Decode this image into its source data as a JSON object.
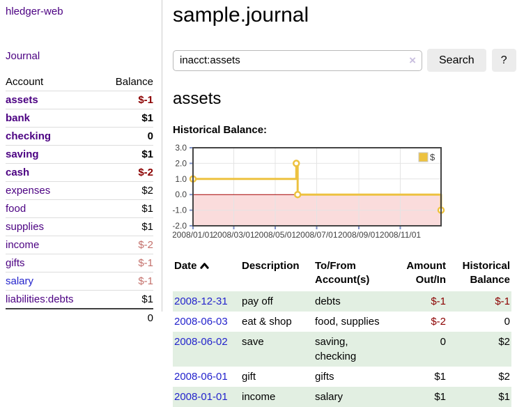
{
  "app": {
    "title": "hledger-web"
  },
  "sidebar": {
    "journal_link": "Journal",
    "accounts": {
      "col_account": "Account",
      "col_balance": "Balance",
      "rows": [
        {
          "name": "assets",
          "balance": "$-1",
          "level": 1,
          "bold": true,
          "balance_style": "neg-strong",
          "link_style": "purple"
        },
        {
          "name": "bank",
          "balance": "$1",
          "level": 2,
          "bold": true,
          "balance_style": "pos",
          "link_style": "purple"
        },
        {
          "name": "checking",
          "balance": "0",
          "level": 3,
          "bold": true,
          "balance_style": "pos",
          "link_style": "purple"
        },
        {
          "name": "saving",
          "balance": "$1",
          "level": 3,
          "bold": true,
          "balance_style": "pos",
          "link_style": "purple"
        },
        {
          "name": "cash",
          "balance": "$-2",
          "level": 2,
          "bold": true,
          "balance_style": "neg-strong",
          "link_style": "purple"
        },
        {
          "name": "expenses",
          "balance": "$2",
          "level": 1,
          "bold": false,
          "balance_style": "pos",
          "link_style": "purple"
        },
        {
          "name": "food",
          "balance": "$1",
          "level": 2,
          "bold": false,
          "balance_style": "pos",
          "link_style": "purple"
        },
        {
          "name": "supplies",
          "balance": "$1",
          "level": 2,
          "bold": false,
          "balance_style": "pos",
          "link_style": "purple"
        },
        {
          "name": "income",
          "balance": "$-2",
          "level": 1,
          "bold": false,
          "balance_style": "neg-muted",
          "link_style": "purple"
        },
        {
          "name": "gifts",
          "balance": "$-1",
          "level": 2,
          "bold": false,
          "balance_style": "neg-muted",
          "link_style": "purple"
        },
        {
          "name": "salary",
          "balance": "$-1",
          "level": 2,
          "bold": false,
          "balance_style": "neg-muted",
          "link_style": "blue"
        },
        {
          "name": "liabilities:debts",
          "balance": "$1",
          "level": 1,
          "bold": false,
          "balance_style": "pos",
          "link_style": "purple"
        }
      ],
      "total": "0"
    }
  },
  "header": {
    "title": "sample.journal"
  },
  "search": {
    "value": "inacct:assets",
    "clear_icon": "×",
    "button_label": "Search",
    "help_label": "?"
  },
  "register": {
    "heading": "assets",
    "chart_label": "Historical Balance:",
    "table": {
      "headers": {
        "date": "Date",
        "description": "Description",
        "tofrom1": "To/From",
        "tofrom2": "Account(s)",
        "amount1": "Amount",
        "amount2": "Out/In",
        "balance1": "Historical",
        "balance2": "Balance"
      },
      "rows": [
        {
          "date": "2008-12-31",
          "description": "pay off",
          "accounts": "debts",
          "amount": "$-1",
          "balance": "$-1"
        },
        {
          "date": "2008-06-03",
          "description": "eat & shop",
          "accounts": "food, supplies",
          "amount": "$-2",
          "balance": "0"
        },
        {
          "date": "2008-06-02",
          "description": "save",
          "accounts": "saving, checking",
          "amount": "0",
          "balance": "$2"
        },
        {
          "date": "2008-06-01",
          "description": "gift",
          "accounts": "gifts",
          "amount": "$1",
          "balance": "$2"
        },
        {
          "date": "2008-01-01",
          "description": "income",
          "accounts": "salary",
          "amount": "$1",
          "balance": "$1"
        }
      ]
    }
  },
  "chart_data": {
    "type": "line",
    "title": "Historical Balance",
    "step": true,
    "x_domain": [
      "2008-01-01",
      "2008-12-31"
    ],
    "ylim": [
      -2,
      3
    ],
    "y_ticks": [
      3,
      2,
      1,
      0,
      -1,
      -2
    ],
    "y_tick_labels": [
      "3.0",
      "2.0",
      "1.0",
      "0.0",
      "-1.0",
      "-2.0"
    ],
    "x_ticks": [
      "2008-01-01",
      "2008-03-01",
      "2008-05-01",
      "2008-07-01",
      "2008-09-01",
      "2008-11-01"
    ],
    "x_tick_labels": [
      "2008/01/01",
      "2008/03/01",
      "2008/05/01",
      "2008/07/01",
      "2008/09/01",
      "2008/11/01"
    ],
    "legend": {
      "label": "$",
      "position": "top-right"
    },
    "series": [
      {
        "name": "$",
        "color": "#edc240",
        "points": [
          [
            "2008-01-01",
            1
          ],
          [
            "2008-06-01",
            2
          ],
          [
            "2008-06-03",
            0
          ],
          [
            "2008-12-31",
            -1
          ]
        ]
      }
    ],
    "negative_region": {
      "from": 0,
      "to": -2,
      "fill": "#fadcdc",
      "line_color": "#a40000"
    },
    "colors": {
      "border": "#444444",
      "grid": "#e4e4e4",
      "tick": "#7d8fc6",
      "label": "#3f3f3f"
    }
  },
  "colors": {
    "link_purple": "#4b0082",
    "link_blue": "#2323cc",
    "neg_strong": "#8b0000",
    "neg_muted": "#c4716c",
    "row_green": "#e2efe2"
  }
}
